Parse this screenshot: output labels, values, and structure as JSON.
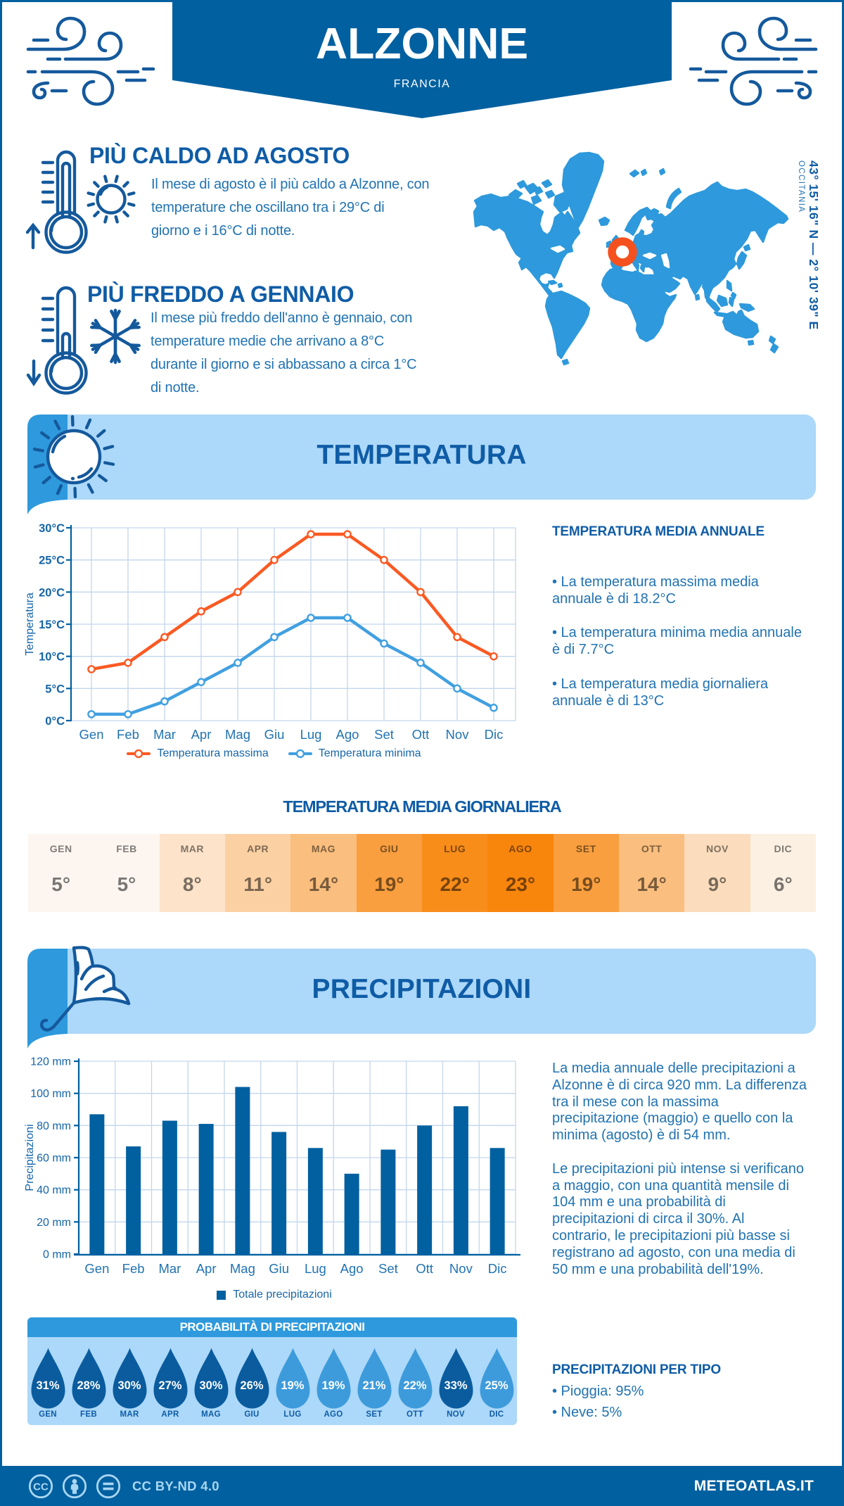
{
  "palette": {
    "dark": "#0060A0",
    "headline": "#0F5CA6",
    "body": "#2173B2",
    "medium": "#2E99DC",
    "light": "#ACD8F9",
    "grid": "#C2D6EC",
    "axis_label": "#1565A8",
    "month_label": "#2173B2",
    "line_max": "#FA5A23",
    "line_min": "#41A0E0",
    "bar": "#0060A0",
    "marker_ring": "#F4511E",
    "drop_dark": "#0A5C9E",
    "drop_light": "#3E9BDB",
    "map_land": "#2E99DC",
    "icon_stroke": "#14599C"
  },
  "header": {
    "title": "ALZONNE",
    "subtitle": "FRANCIA",
    "coordinates": "43° 15' 16\" N — 2° 10' 39\" E",
    "region": "OCCITANIA"
  },
  "highlights": {
    "hot": {
      "title": "PIÙ CALDO AD AGOSTO",
      "text": [
        "Il mese di agosto è il più caldo a Alzonne, con",
        "temperature che oscillano tra i 29°C di",
        "giorno e i 16°C di notte."
      ]
    },
    "cold": {
      "title": "PIÙ FREDDO A GENNAIO",
      "text": [
        "Il mese più freddo dell'anno è gennaio, con",
        "temperature medie che arrivano a 8°C",
        "durante il giorno e si abbassano a circa 1°C",
        "di notte."
      ]
    }
  },
  "temperature_section": {
    "banner_title": "TEMPERATURA",
    "col_heading": "TEMPERATURA MEDIA ANNUALE",
    "bullets": [
      [
        "• La temperatura massima media",
        "annuale è di 18.2°C"
      ],
      [
        "• La temperatura minima media annuale",
        "è di 7.7°C"
      ],
      [
        "• La temperatura media giornaliera",
        "annuale è di 13°C"
      ]
    ],
    "daily_heading": "TEMPERATURA MEDIA GIORNALIERA"
  },
  "precipitation_section": {
    "banner_title": "PRECIPITAZIONI",
    "col_text": [
      "La media annuale delle precipitazioni a",
      "Alzonne è di circa 920 mm. La differenza",
      "tra il mese con la massima",
      "precipitazione (maggio) e quello con la",
      "minima (agosto) è di 54 mm.",
      "",
      "Le precipitazioni più intense si verificano",
      "a maggio, con una quantità mensile di",
      "104 mm e una probabilità di",
      "precipitazioni di circa il 30%. Al",
      "contrario, le precipitazioni più basse si",
      "registrano ad agosto, con una media di",
      "50 mm e una probabilità dell'19%."
    ],
    "col_heading": "PRECIPITAZIONI PER TIPO",
    "types": {
      "rain": "• Pioggia: 95%",
      "snow": "• Neve: 5%"
    },
    "probability_title": "PROBABILITÀ DI PRECIPITAZIONI"
  },
  "footer": {
    "license": "CC BY-ND 4.0",
    "brand": "METEOATLAS.IT"
  },
  "chart_data": [
    {
      "id": "temperature_monthly",
      "type": "line",
      "categories": [
        "Gen",
        "Feb",
        "Mar",
        "Apr",
        "Mag",
        "Giu",
        "Lug",
        "Ago",
        "Set",
        "Ott",
        "Nov",
        "Dic"
      ],
      "series": [
        {
          "name": "Temperatura massima",
          "color": "#FA5A23",
          "values": [
            8,
            9,
            13,
            17,
            20,
            25,
            29,
            29,
            25,
            20,
            13,
            10
          ]
        },
        {
          "name": "Temperatura minima",
          "color": "#41A0E0",
          "values": [
            1,
            1,
            3,
            6,
            9,
            13,
            16,
            16,
            12,
            9,
            5,
            2
          ]
        }
      ],
      "ylabel": "Temperatura",
      "ylim": [
        0,
        30
      ],
      "ytick_step": 5,
      "ytick_suffix": "°C",
      "grid": true,
      "legend_position": "bottom"
    },
    {
      "id": "daily_mean_temperature",
      "type": "heatmap",
      "categories": [
        "GEN",
        "FEB",
        "MAR",
        "APR",
        "MAG",
        "GIU",
        "LUG",
        "AGO",
        "SET",
        "OTT",
        "NOV",
        "DIC"
      ],
      "values": [
        5,
        5,
        8,
        11,
        14,
        19,
        22,
        23,
        19,
        14,
        9,
        6
      ],
      "value_suffix": "°",
      "cell_colors": [
        "#FDF6F0",
        "#FDF6F0",
        "#FCE3CA",
        "#FBD1A4",
        "#FABE7E",
        "#F99F3F",
        "#F88D1A",
        "#F8860D",
        "#F99F3F",
        "#FABE7E",
        "#FBDDBD",
        "#FCF0E3"
      ]
    },
    {
      "id": "precipitation_monthly",
      "type": "bar",
      "categories": [
        "Gen",
        "Feb",
        "Mar",
        "Apr",
        "Mag",
        "Giu",
        "Lug",
        "Ago",
        "Set",
        "Ott",
        "Nov",
        "Dic"
      ],
      "series": [
        {
          "name": "Totale precipitazioni",
          "color": "#0060A0",
          "values": [
            87,
            67,
            83,
            81,
            104,
            76,
            66,
            50,
            65,
            80,
            92,
            66
          ]
        }
      ],
      "ylabel": "Precipitazioni",
      "ylim": [
        0,
        120
      ],
      "ytick_step": 20,
      "ytick_suffix": " mm",
      "grid": true,
      "legend_position": "bottom"
    },
    {
      "id": "precipitation_probability",
      "type": "pictogram",
      "categories": [
        "GEN",
        "FEB",
        "MAR",
        "APR",
        "MAG",
        "GIU",
        "LUG",
        "AGO",
        "SET",
        "OTT",
        "NOV",
        "DIC"
      ],
      "values": [
        31,
        28,
        30,
        27,
        30,
        26,
        19,
        19,
        21,
        22,
        33,
        25
      ],
      "value_suffix": "%",
      "drop_colors": [
        "#0A5C9E",
        "#0A5C9E",
        "#0A5C9E",
        "#0A5C9E",
        "#0A5C9E",
        "#0A5C9E",
        "#3E9BDB",
        "#3E9BDB",
        "#3E9BDB",
        "#3E9BDB",
        "#0A5C9E",
        "#3E9BDB"
      ]
    }
  ]
}
